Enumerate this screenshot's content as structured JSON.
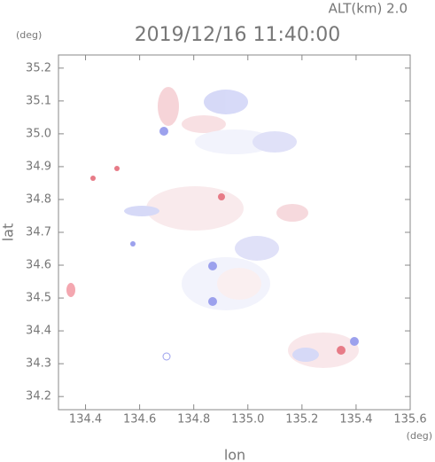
{
  "chart_data": {
    "type": "radar-field",
    "title": "2019/12/16 11:40:00",
    "altitude_label": "ALT(km) 2.0",
    "y_unit": "(deg)",
    "x_unit": "(deg)",
    "x_label": "lon",
    "y_label": "lat",
    "xlim": [
      134.3,
      135.6
    ],
    "xticks": [
      134.4,
      134.6,
      134.8,
      135.0,
      135.2,
      135.4,
      135.6
    ],
    "ylim": [
      34.16,
      35.24
    ],
    "yticks": [
      34.2,
      34.3,
      34.4,
      34.5,
      34.6,
      34.7,
      34.8,
      34.9,
      35.0,
      35.1,
      35.2
    ]
  }
}
